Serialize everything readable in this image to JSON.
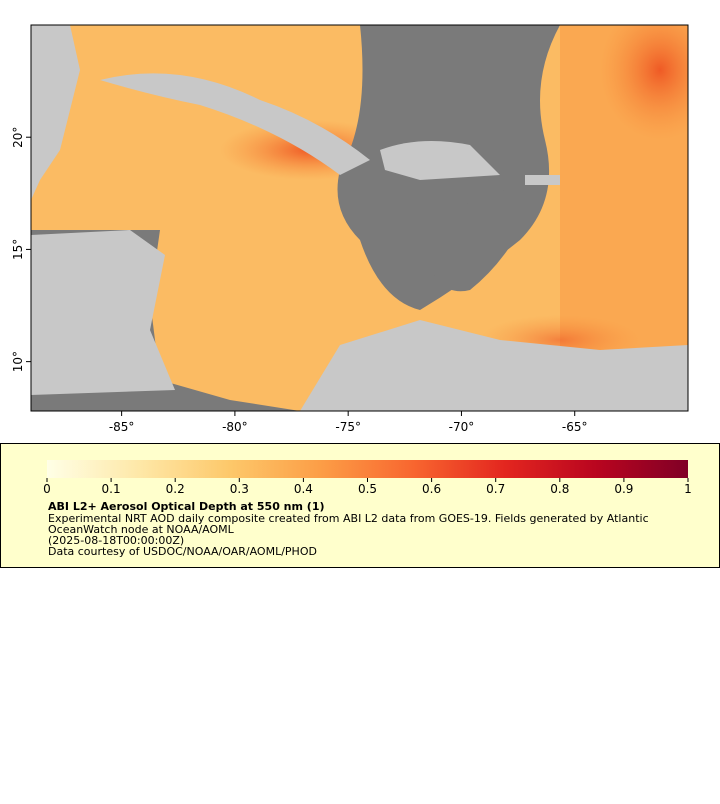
{
  "map": {
    "xlim": [
      -89,
      -60
    ],
    "ylim": [
      7.8,
      25
    ],
    "xticks": [
      {
        "value": -85,
        "label": "-85°"
      },
      {
        "value": -80,
        "label": "-80°"
      },
      {
        "value": -75,
        "label": "-75°"
      },
      {
        "value": -70,
        "label": "-70°"
      },
      {
        "value": -65,
        "label": "-65°"
      }
    ],
    "yticks": [
      {
        "value": 10,
        "label": "10°"
      },
      {
        "value": 15,
        "label": "15°"
      },
      {
        "value": 20,
        "label": "20°"
      }
    ]
  },
  "legend": {
    "title": "ABI L2+ Aerosol Optical Depth at 550 nm (1)",
    "description": [
      "Experimental NRT AOD daily composite created from ABI L2 data from GOES-19. Fields generated by Atlantic",
      "OceanWatch node at NOAA/AOML",
      "(2025-08-18T00:00:00Z)",
      "Data courtesy of USDOC/NOAA/OAR/AOML/PHOD"
    ],
    "colorbar": {
      "lim": [
        0,
        1
      ],
      "ticks": [
        0,
        0.1,
        0.2,
        0.3,
        0.4,
        0.5,
        0.6,
        0.7,
        0.8,
        0.9,
        1
      ],
      "colors": [
        "#ffffe6",
        "#fee8a8",
        "#fdc86a",
        "#fc9d46",
        "#f8662f",
        "#e3261f",
        "#b9051f",
        "#800026"
      ]
    }
  }
}
